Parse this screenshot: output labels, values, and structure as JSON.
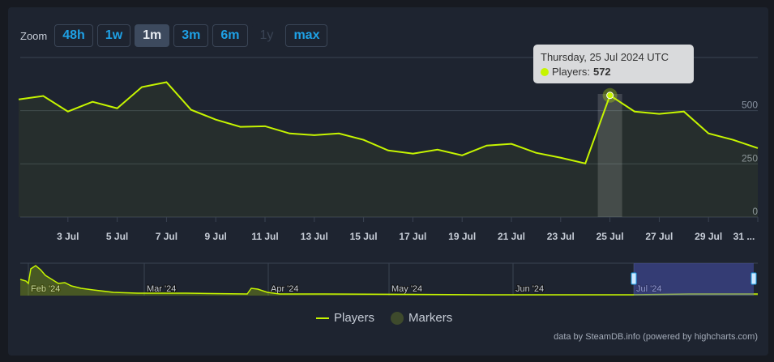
{
  "zoom": {
    "label": "Zoom",
    "buttons": [
      {
        "label": "48h",
        "state": "normal"
      },
      {
        "label": "1w",
        "state": "normal"
      },
      {
        "label": "1m",
        "state": "active"
      },
      {
        "label": "3m",
        "state": "normal"
      },
      {
        "label": "6m",
        "state": "normal"
      },
      {
        "label": "1y",
        "state": "disabled"
      },
      {
        "label": "max",
        "state": "normal"
      }
    ]
  },
  "tooltip": {
    "date": "Thursday, 25 Jul 2024 UTC",
    "series": "Players:",
    "value": "572"
  },
  "legend": {
    "players": "Players",
    "markers": "Markers"
  },
  "credit": "data by SteamDB.info (powered by highcharts.com)",
  "colors": {
    "line": "#c6f500",
    "background": "#1e2430",
    "accent": "#1ea1e6"
  },
  "navigator": {
    "labels": [
      "Feb '24",
      "Mar '24",
      "Apr '24",
      "May '24",
      "Jun '24",
      "Jul '24"
    ]
  },
  "chart_data": {
    "type": "line",
    "title": "",
    "xlabel": "",
    "ylabel": "",
    "x": [
      "1 Jul",
      "2 Jul",
      "3 Jul",
      "4 Jul",
      "5 Jul",
      "6 Jul",
      "7 Jul",
      "8 Jul",
      "9 Jul",
      "10 Jul",
      "11 Jul",
      "12 Jul",
      "13 Jul",
      "14 Jul",
      "15 Jul",
      "16 Jul",
      "17 Jul",
      "18 Jul",
      "19 Jul",
      "20 Jul",
      "21 Jul",
      "22 Jul",
      "23 Jul",
      "24 Jul",
      "25 Jul",
      "26 Jul",
      "27 Jul",
      "28 Jul",
      "29 Jul",
      "30 Jul",
      "31 Jul"
    ],
    "series": [
      {
        "name": "Players",
        "values": [
          553,
          569,
          496,
          542,
          511,
          611,
          634,
          504,
          458,
          424,
          427,
          393,
          385,
          393,
          363,
          313,
          298,
          317,
          290,
          336,
          344,
          302,
          279,
          252,
          572,
          496,
          485,
          496,
          393,
          363,
          324
        ]
      }
    ],
    "xticks": [
      "3 Jul",
      "5 Jul",
      "7 Jul",
      "9 Jul",
      "11 Jul",
      "13 Jul",
      "15 Jul",
      "17 Jul",
      "19 Jul",
      "21 Jul",
      "23 Jul",
      "25 Jul",
      "27 Jul",
      "29 Jul",
      "31 ..."
    ],
    "yticks": [
      "0",
      "250",
      "500"
    ],
    "ylim": [
      0,
      750
    ],
    "grid": true,
    "legend": "bottom",
    "highlighted": "25 Jul"
  }
}
